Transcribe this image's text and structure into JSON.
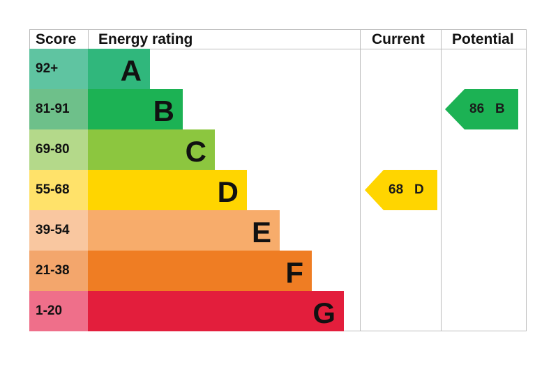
{
  "chart_data": {
    "type": "table",
    "headers": {
      "score": "Score",
      "rating": "Energy rating",
      "current": "Current",
      "potential": "Potential"
    },
    "bands": [
      {
        "range": "92+",
        "letter": "A",
        "color": "#30b77c",
        "score_color": "#5fc4a1"
      },
      {
        "range": "81-91",
        "letter": "B",
        "color": "#1cb254",
        "score_color": "#6ec08a"
      },
      {
        "range": "69-80",
        "letter": "C",
        "color": "#8cc63f",
        "score_color": "#b4d98a"
      },
      {
        "range": "55-68",
        "letter": "D",
        "color": "#ffd500",
        "score_color": "#ffe26a"
      },
      {
        "range": "39-54",
        "letter": "E",
        "color": "#f7ac6b",
        "score_color": "#f9c7a0"
      },
      {
        "range": "21-38",
        "letter": "F",
        "color": "#ef7d23",
        "score_color": "#f3a66c"
      },
      {
        "range": "1-20",
        "letter": "G",
        "color": "#e31e3c",
        "score_color": "#ef6f8a"
      }
    ],
    "current": {
      "value": "68",
      "letter": "D",
      "color": "#ffd500"
    },
    "potential": {
      "value": "86",
      "letter": "B",
      "color": "#1cb254"
    }
  }
}
